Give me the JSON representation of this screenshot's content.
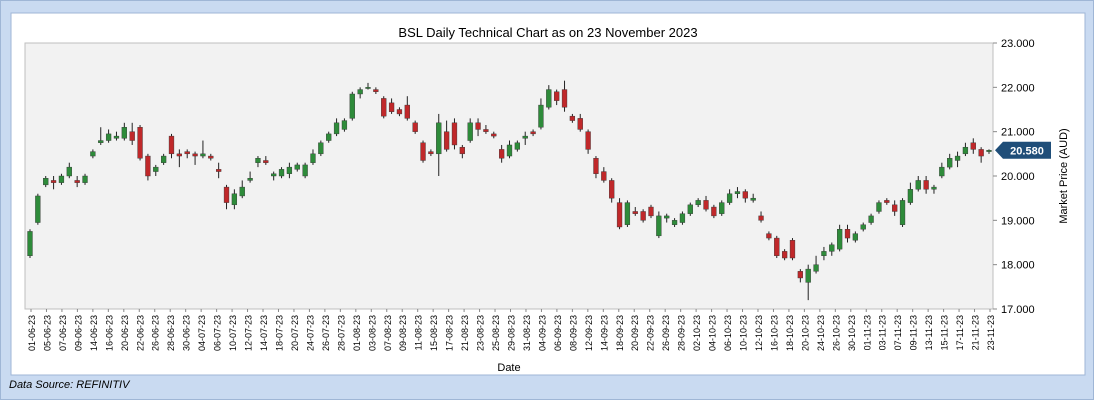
{
  "colors": {
    "up": "#2e8b3a",
    "down": "#c0282a",
    "wick": "#222222",
    "badge": "#1f4e79",
    "plot_bg": "#f2f2f2",
    "frame_bg": "#c9daf1"
  },
  "source": "Data Source: REFINITIV",
  "chart_data": {
    "type": "candlestick",
    "title": "BSL Daily Technical Chart as on 23 November 2023",
    "xlabel": "Date",
    "ylabel": "Market Price (AUD)",
    "ylim": [
      17.0,
      23.0
    ],
    "yticks": [
      "17.000",
      "18.000",
      "19.000",
      "20.000",
      "21.000",
      "22.000",
      "23.000"
    ],
    "grid": false,
    "last_price_label": "20.580",
    "xtick_labels": [
      "01-06-23",
      "05-06-23",
      "07-06-23",
      "09-06-23",
      "14-06-23",
      "16-06-23",
      "20-06-23",
      "22-06-23",
      "26-06-23",
      "28-06-23",
      "30-06-23",
      "04-07-23",
      "06-07-23",
      "10-07-23",
      "12-07-23",
      "14-07-23",
      "18-07-23",
      "20-07-23",
      "24-07-23",
      "26-07-23",
      "28-07-23",
      "01-08-23",
      "03-08-23",
      "07-08-23",
      "09-08-23",
      "11-08-23",
      "15-08-23",
      "17-08-23",
      "21-08-23",
      "23-08-23",
      "25-08-23",
      "29-08-23",
      "31-08-23",
      "04-09-23",
      "06-09-23",
      "08-09-23",
      "12-09-23",
      "14-09-23",
      "18-09-23",
      "20-09-23",
      "22-09-23",
      "26-09-23",
      "28-09-23",
      "02-10-23",
      "04-10-23",
      "06-10-23",
      "10-10-23",
      "12-10-23",
      "16-10-23",
      "18-10-23",
      "20-10-23",
      "24-10-23",
      "26-10-23",
      "30-10-23",
      "01-11-23",
      "03-11-23",
      "07-11-23",
      "09-11-23",
      "13-11-23",
      "15-11-23",
      "17-11-23",
      "21-11-23",
      "23-11-23"
    ],
    "candles": [
      {
        "open": 18.2,
        "high": 18.8,
        "low": 18.15,
        "close": 18.75
      },
      {
        "open": 18.95,
        "high": 19.6,
        "low": 18.9,
        "close": 19.55
      },
      {
        "open": 19.8,
        "high": 20.0,
        "low": 19.75,
        "close": 19.95
      },
      {
        "open": 19.9,
        "high": 20.0,
        "low": 19.7,
        "close": 19.85
      },
      {
        "open": 19.85,
        "high": 20.05,
        "low": 19.8,
        "close": 20.0
      },
      {
        "open": 20.0,
        "high": 20.3,
        "low": 19.95,
        "close": 20.2
      },
      {
        "open": 19.9,
        "high": 20.0,
        "low": 19.75,
        "close": 19.85
      },
      {
        "open": 19.85,
        "high": 20.05,
        "low": 19.8,
        "close": 20.0
      },
      {
        "open": 20.45,
        "high": 20.6,
        "low": 20.4,
        "close": 20.55
      },
      {
        "open": 20.75,
        "high": 21.1,
        "low": 20.7,
        "close": 20.8
      },
      {
        "open": 20.8,
        "high": 21.05,
        "low": 20.75,
        "close": 20.95
      },
      {
        "open": 20.85,
        "high": 21.0,
        "low": 20.8,
        "close": 20.9
      },
      {
        "open": 20.85,
        "high": 21.2,
        "low": 20.8,
        "close": 21.1
      },
      {
        "open": 21.0,
        "high": 21.2,
        "low": 20.7,
        "close": 20.8
      },
      {
        "open": 21.1,
        "high": 21.15,
        "low": 20.35,
        "close": 20.4
      },
      {
        "open": 20.45,
        "high": 20.5,
        "low": 19.9,
        "close": 20.0
      },
      {
        "open": 20.1,
        "high": 20.25,
        "low": 20.0,
        "close": 20.2
      },
      {
        "open": 20.3,
        "high": 20.5,
        "low": 20.25,
        "close": 20.45
      },
      {
        "open": 20.9,
        "high": 20.95,
        "low": 20.4,
        "close": 20.5
      },
      {
        "open": 20.5,
        "high": 20.6,
        "low": 20.2,
        "close": 20.45
      },
      {
        "open": 20.55,
        "high": 20.6,
        "low": 20.4,
        "close": 20.5
      },
      {
        "open": 20.5,
        "high": 20.55,
        "low": 20.25,
        "close": 20.45
      },
      {
        "open": 20.45,
        "high": 20.8,
        "low": 20.4,
        "close": 20.5
      },
      {
        "open": 20.45,
        "high": 20.5,
        "low": 20.35,
        "close": 20.4
      },
      {
        "open": 20.15,
        "high": 20.3,
        "low": 19.95,
        "close": 20.1
      },
      {
        "open": 19.75,
        "high": 19.8,
        "low": 19.25,
        "close": 19.4
      },
      {
        "open": 19.35,
        "high": 19.7,
        "low": 19.25,
        "close": 19.6
      },
      {
        "open": 19.55,
        "high": 19.9,
        "low": 19.5,
        "close": 19.75
      },
      {
        "open": 19.9,
        "high": 20.1,
        "low": 19.85,
        "close": 19.95
      },
      {
        "open": 20.3,
        "high": 20.45,
        "low": 20.2,
        "close": 20.4
      },
      {
        "open": 20.35,
        "high": 20.45,
        "low": 20.25,
        "close": 20.3
      },
      {
        "open": 20.0,
        "high": 20.1,
        "low": 19.9,
        "close": 20.05
      },
      {
        "open": 20.0,
        "high": 20.2,
        "low": 19.95,
        "close": 20.15
      },
      {
        "open": 20.05,
        "high": 20.3,
        "low": 19.95,
        "close": 20.2
      },
      {
        "open": 20.15,
        "high": 20.3,
        "low": 20.1,
        "close": 20.25
      },
      {
        "open": 20.0,
        "high": 20.3,
        "low": 19.95,
        "close": 20.25
      },
      {
        "open": 20.3,
        "high": 20.6,
        "low": 20.25,
        "close": 20.5
      },
      {
        "open": 20.5,
        "high": 20.8,
        "low": 20.45,
        "close": 20.75
      },
      {
        "open": 20.8,
        "high": 21.0,
        "low": 20.75,
        "close": 20.95
      },
      {
        "open": 20.95,
        "high": 21.3,
        "low": 20.9,
        "close": 21.2
      },
      {
        "open": 21.05,
        "high": 21.3,
        "low": 21.0,
        "close": 21.25
      },
      {
        "open": 21.3,
        "high": 21.9,
        "low": 21.25,
        "close": 21.85
      },
      {
        "open": 21.85,
        "high": 22.0,
        "low": 21.75,
        "close": 21.95
      },
      {
        "open": 22.0,
        "high": 22.1,
        "low": 21.95,
        "close": 22.0
      },
      {
        "open": 21.95,
        "high": 22.0,
        "low": 21.85,
        "close": 21.9
      },
      {
        "open": 21.75,
        "high": 21.8,
        "low": 21.3,
        "close": 21.35
      },
      {
        "open": 21.65,
        "high": 21.75,
        "low": 21.4,
        "close": 21.45
      },
      {
        "open": 21.5,
        "high": 21.55,
        "low": 21.35,
        "close": 21.4
      },
      {
        "open": 21.6,
        "high": 21.8,
        "low": 21.25,
        "close": 21.3
      },
      {
        "open": 21.2,
        "high": 21.25,
        "low": 20.95,
        "close": 21.0
      },
      {
        "open": 20.75,
        "high": 20.8,
        "low": 20.3,
        "close": 20.35
      },
      {
        "open": 20.55,
        "high": 20.6,
        "low": 20.45,
        "close": 20.5
      },
      {
        "open": 20.5,
        "high": 21.4,
        "low": 20.0,
        "close": 21.2
      },
      {
        "open": 21.0,
        "high": 21.25,
        "low": 20.55,
        "close": 20.6
      },
      {
        "open": 21.2,
        "high": 21.3,
        "low": 20.6,
        "close": 20.7
      },
      {
        "open": 20.65,
        "high": 20.7,
        "low": 20.4,
        "close": 20.5
      },
      {
        "open": 20.8,
        "high": 21.3,
        "low": 20.75,
        "close": 21.2
      },
      {
        "open": 21.2,
        "high": 21.3,
        "low": 20.9,
        "close": 21.05
      },
      {
        "open": 21.05,
        "high": 21.15,
        "low": 20.95,
        "close": 21.0
      },
      {
        "open": 20.95,
        "high": 21.0,
        "low": 20.85,
        "close": 20.9
      },
      {
        "open": 20.6,
        "high": 20.7,
        "low": 20.3,
        "close": 20.4
      },
      {
        "open": 20.45,
        "high": 20.8,
        "low": 20.4,
        "close": 20.7
      },
      {
        "open": 20.6,
        "high": 20.8,
        "low": 20.55,
        "close": 20.75
      },
      {
        "open": 20.85,
        "high": 21.0,
        "low": 20.7,
        "close": 20.9
      },
      {
        "open": 21.0,
        "high": 21.05,
        "low": 20.9,
        "close": 20.95
      },
      {
        "open": 21.1,
        "high": 21.75,
        "low": 21.05,
        "close": 21.6
      },
      {
        "open": 21.55,
        "high": 22.05,
        "low": 21.5,
        "close": 21.95
      },
      {
        "open": 21.9,
        "high": 21.95,
        "low": 21.6,
        "close": 21.7
      },
      {
        "open": 21.95,
        "high": 22.15,
        "low": 21.45,
        "close": 21.55
      },
      {
        "open": 21.35,
        "high": 21.4,
        "low": 21.2,
        "close": 21.25
      },
      {
        "open": 21.3,
        "high": 21.4,
        "low": 21.0,
        "close": 21.05
      },
      {
        "open": 21.0,
        "high": 21.05,
        "low": 20.5,
        "close": 20.6
      },
      {
        "open": 20.4,
        "high": 20.45,
        "low": 19.95,
        "close": 20.05
      },
      {
        "open": 20.1,
        "high": 20.2,
        "low": 19.85,
        "close": 19.9
      },
      {
        "open": 19.9,
        "high": 19.95,
        "low": 19.4,
        "close": 19.5
      },
      {
        "open": 19.4,
        "high": 19.5,
        "low": 18.8,
        "close": 18.85
      },
      {
        "open": 18.9,
        "high": 19.45,
        "low": 18.85,
        "close": 19.4
      },
      {
        "open": 19.2,
        "high": 19.3,
        "low": 19.1,
        "close": 19.15
      },
      {
        "open": 19.2,
        "high": 19.25,
        "low": 18.95,
        "close": 19.0
      },
      {
        "open": 19.3,
        "high": 19.35,
        "low": 19.05,
        "close": 19.1
      },
      {
        "open": 18.65,
        "high": 19.2,
        "low": 18.6,
        "close": 19.1
      },
      {
        "open": 19.05,
        "high": 19.15,
        "low": 18.95,
        "close": 19.1
      },
      {
        "open": 18.9,
        "high": 19.05,
        "low": 18.85,
        "close": 19.0
      },
      {
        "open": 18.95,
        "high": 19.2,
        "low": 18.9,
        "close": 19.15
      },
      {
        "open": 19.15,
        "high": 19.4,
        "low": 19.1,
        "close": 19.35
      },
      {
        "open": 19.35,
        "high": 19.5,
        "low": 19.3,
        "close": 19.45
      },
      {
        "open": 19.45,
        "high": 19.55,
        "low": 19.2,
        "close": 19.25
      },
      {
        "open": 19.3,
        "high": 19.35,
        "low": 19.05,
        "close": 19.1
      },
      {
        "open": 19.15,
        "high": 19.45,
        "low": 19.1,
        "close": 19.4
      },
      {
        "open": 19.4,
        "high": 19.7,
        "low": 19.35,
        "close": 19.6
      },
      {
        "open": 19.6,
        "high": 19.75,
        "low": 19.5,
        "close": 19.65
      },
      {
        "open": 19.65,
        "high": 19.7,
        "low": 19.4,
        "close": 19.5
      },
      {
        "open": 19.45,
        "high": 19.6,
        "low": 19.4,
        "close": 19.5
      },
      {
        "open": 19.1,
        "high": 19.2,
        "low": 18.95,
        "close": 19.0
      },
      {
        "open": 18.7,
        "high": 18.75,
        "low": 18.55,
        "close": 18.6
      },
      {
        "open": 18.6,
        "high": 18.65,
        "low": 18.15,
        "close": 18.2
      },
      {
        "open": 18.3,
        "high": 18.35,
        "low": 18.1,
        "close": 18.15
      },
      {
        "open": 18.55,
        "high": 18.6,
        "low": 18.1,
        "close": 18.15
      },
      {
        "open": 17.85,
        "high": 17.9,
        "low": 17.6,
        "close": 17.7
      },
      {
        "open": 17.6,
        "high": 18.0,
        "low": 17.2,
        "close": 17.9
      },
      {
        "open": 17.85,
        "high": 18.2,
        "low": 17.8,
        "close": 18.0
      },
      {
        "open": 18.2,
        "high": 18.4,
        "low": 18.1,
        "close": 18.3
      },
      {
        "open": 18.3,
        "high": 18.5,
        "low": 18.2,
        "close": 18.45
      },
      {
        "open": 18.35,
        "high": 18.9,
        "low": 18.3,
        "close": 18.8
      },
      {
        "open": 18.8,
        "high": 18.9,
        "low": 18.5,
        "close": 18.6
      },
      {
        "open": 18.55,
        "high": 18.75,
        "low": 18.5,
        "close": 18.7
      },
      {
        "open": 18.8,
        "high": 18.95,
        "low": 18.75,
        "close": 18.9
      },
      {
        "open": 18.95,
        "high": 19.15,
        "low": 18.9,
        "close": 19.1
      },
      {
        "open": 19.2,
        "high": 19.45,
        "low": 19.15,
        "close": 19.4
      },
      {
        "open": 19.45,
        "high": 19.5,
        "low": 19.35,
        "close": 19.4
      },
      {
        "open": 19.35,
        "high": 19.45,
        "low": 19.1,
        "close": 19.2
      },
      {
        "open": 18.9,
        "high": 19.5,
        "low": 18.85,
        "close": 19.45
      },
      {
        "open": 19.4,
        "high": 19.85,
        "low": 19.35,
        "close": 19.7
      },
      {
        "open": 19.7,
        "high": 20.0,
        "low": 19.65,
        "close": 19.9
      },
      {
        "open": 19.9,
        "high": 20.0,
        "low": 19.6,
        "close": 19.7
      },
      {
        "open": 19.7,
        "high": 19.8,
        "low": 19.6,
        "close": 19.75
      },
      {
        "open": 20.0,
        "high": 20.3,
        "low": 19.95,
        "close": 20.2
      },
      {
        "open": 20.2,
        "high": 20.5,
        "low": 20.15,
        "close": 20.4
      },
      {
        "open": 20.35,
        "high": 20.55,
        "low": 20.2,
        "close": 20.45
      },
      {
        "open": 20.5,
        "high": 20.75,
        "low": 20.45,
        "close": 20.65
      },
      {
        "open": 20.75,
        "high": 20.85,
        "low": 20.5,
        "close": 20.6
      },
      {
        "open": 20.6,
        "high": 20.65,
        "low": 20.3,
        "close": 20.45
      },
      {
        "open": 20.55,
        "high": 20.6,
        "low": 20.5,
        "close": 20.58
      }
    ]
  }
}
